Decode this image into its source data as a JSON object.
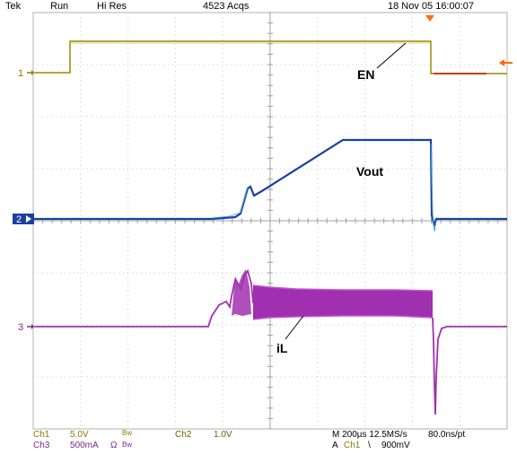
{
  "status_bar": {
    "brand": "Tek",
    "run_state": "Run",
    "mode": "Hi Res",
    "acquisitions": "4523 Acqs",
    "timestamp": "18 Nov 05 16:00:07"
  },
  "markers": {
    "ch1": "1",
    "ch2": "2",
    "ch3": "3"
  },
  "annotations": {
    "en": "EN",
    "vout": "Vout",
    "il": "iL"
  },
  "footer": {
    "ch1": {
      "name": "Ch1",
      "scale": "5.0V",
      "bw": "Bw"
    },
    "ch2": {
      "name": "Ch2",
      "scale": "1.0V"
    },
    "ch3": {
      "name": "Ch3",
      "scale": "500mA",
      "ohm": "Ω",
      "bw": "Bw"
    },
    "timebase": "M 200µs 12.5MS/s",
    "record": "80.0ns/pt",
    "trigger_prefix": "A",
    "trigger_source": "Ch1",
    "trigger_slope": "\\",
    "trigger_level": "900mV"
  },
  "colors": {
    "ch1": "#b8a400",
    "ch1_trace": "#9a8c00",
    "ch1_late": "#c04010",
    "ch2": "#1a40a0",
    "ch2_light": "#3a9ad0",
    "ch3": "#a030b0",
    "trigger": "#ff6a00",
    "grid": "#b0b0b0"
  }
}
